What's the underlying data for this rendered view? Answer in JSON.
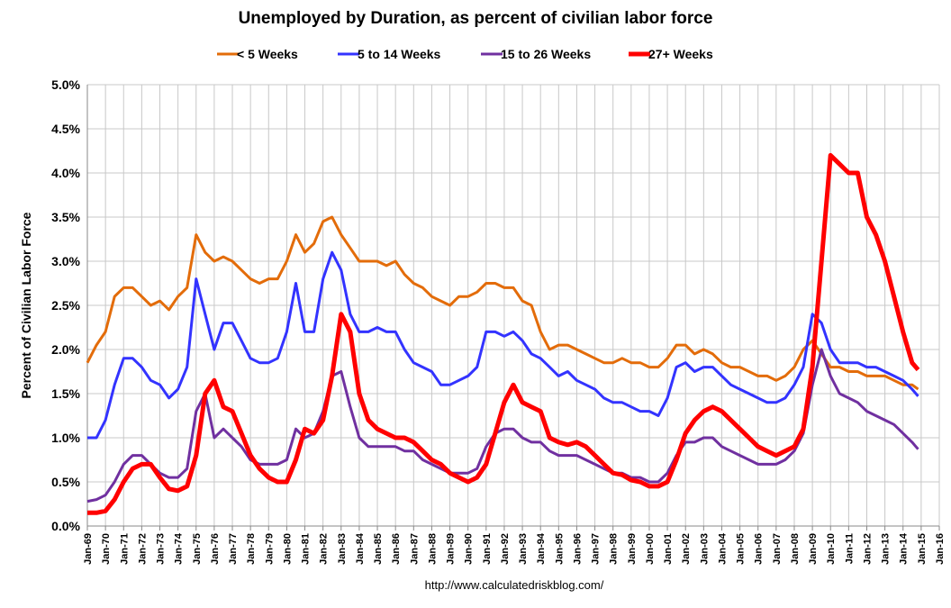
{
  "chart_data": {
    "type": "line",
    "title": "Unemployed by Duration, as percent of civilian labor force",
    "ylabel": "Percent of Civilian Labor Force",
    "source": "http://www.calculatedriskblog.com/",
    "grid": true,
    "legend": "top",
    "x": [
      1969,
      1969.5,
      1970,
      1970.5,
      1971,
      1971.5,
      1972,
      1972.5,
      1973,
      1973.5,
      1974,
      1974.5,
      1975,
      1975.5,
      1976,
      1976.5,
      1977,
      1977.5,
      1978,
      1978.5,
      1979,
      1979.5,
      1980,
      1980.5,
      1981,
      1981.5,
      1982,
      1982.5,
      1983,
      1983.5,
      1984,
      1984.5,
      1985,
      1985.5,
      1986,
      1986.5,
      1987,
      1987.5,
      1988,
      1988.5,
      1989,
      1989.5,
      1990,
      1990.5,
      1991,
      1991.5,
      1992,
      1992.5,
      1993,
      1993.5,
      1994,
      1994.5,
      1995,
      1995.5,
      1996,
      1996.5,
      1997,
      1997.5,
      1998,
      1998.5,
      1999,
      1999.5,
      2000,
      2000.5,
      2001,
      2001.5,
      2002,
      2002.5,
      2003,
      2003.5,
      2004,
      2004.5,
      2005,
      2005.5,
      2006,
      2006.5,
      2007,
      2007.5,
      2008,
      2008.5,
      2009,
      2009.5,
      2010,
      2010.5,
      2011,
      2011.5,
      2012,
      2012.5,
      2013,
      2013.5,
      2014,
      2014.5,
      2014.83
    ],
    "xlim": [
      1969,
      2016
    ],
    "xticks": [
      {
        "value": 1969,
        "label": "Jan-69"
      },
      {
        "value": 1970,
        "label": "Jan-70"
      },
      {
        "value": 1971,
        "label": "Jan-71"
      },
      {
        "value": 1972,
        "label": "Jan-72"
      },
      {
        "value": 1973,
        "label": "Jan-73"
      },
      {
        "value": 1974,
        "label": "Jan-74"
      },
      {
        "value": 1975,
        "label": "Jan-75"
      },
      {
        "value": 1976,
        "label": "Jan-76"
      },
      {
        "value": 1977,
        "label": "Jan-77"
      },
      {
        "value": 1978,
        "label": "Jan-78"
      },
      {
        "value": 1979,
        "label": "Jan-79"
      },
      {
        "value": 1980,
        "label": "Jan-80"
      },
      {
        "value": 1981,
        "label": "Jan-81"
      },
      {
        "value": 1982,
        "label": "Jan-82"
      },
      {
        "value": 1983,
        "label": "Jan-83"
      },
      {
        "value": 1984,
        "label": "Jan-84"
      },
      {
        "value": 1985,
        "label": "Jan-85"
      },
      {
        "value": 1986,
        "label": "Jan-86"
      },
      {
        "value": 1987,
        "label": "Jan-87"
      },
      {
        "value": 1988,
        "label": "Jan-88"
      },
      {
        "value": 1989,
        "label": "Jan-89"
      },
      {
        "value": 1990,
        "label": "Jan-90"
      },
      {
        "value": 1991,
        "label": "Jan-91"
      },
      {
        "value": 1992,
        "label": "Jan-92"
      },
      {
        "value": 1993,
        "label": "Jan-93"
      },
      {
        "value": 1994,
        "label": "Jan-94"
      },
      {
        "value": 1995,
        "label": "Jan-95"
      },
      {
        "value": 1996,
        "label": "Jan-96"
      },
      {
        "value": 1997,
        "label": "Jan-97"
      },
      {
        "value": 1998,
        "label": "Jan-98"
      },
      {
        "value": 1999,
        "label": "Jan-99"
      },
      {
        "value": 2000,
        "label": "Jan-00"
      },
      {
        "value": 2001,
        "label": "Jan-01"
      },
      {
        "value": 2002,
        "label": "Jan-02"
      },
      {
        "value": 2003,
        "label": "Jan-03"
      },
      {
        "value": 2004,
        "label": "Jan-04"
      },
      {
        "value": 2005,
        "label": "Jan-05"
      },
      {
        "value": 2006,
        "label": "Jan-06"
      },
      {
        "value": 2007,
        "label": "Jan-07"
      },
      {
        "value": 2008,
        "label": "Jan-08"
      },
      {
        "value": 2009,
        "label": "Jan-09"
      },
      {
        "value": 2010,
        "label": "Jan-10"
      },
      {
        "value": 2011,
        "label": "Jan-11"
      },
      {
        "value": 2012,
        "label": "Jan-12"
      },
      {
        "value": 2013,
        "label": "Jan-13"
      },
      {
        "value": 2014,
        "label": "Jan-14"
      },
      {
        "value": 2015,
        "label": "Jan-15"
      },
      {
        "value": 2016,
        "label": "Jan-16"
      }
    ],
    "ylim": [
      0,
      5
    ],
    "yticks": [
      {
        "value": 0,
        "label": "0.0%"
      },
      {
        "value": 0.5,
        "label": "0.5%"
      },
      {
        "value": 1,
        "label": "1.0%"
      },
      {
        "value": 1.5,
        "label": "1.5%"
      },
      {
        "value": 2,
        "label": "2.0%"
      },
      {
        "value": 2.5,
        "label": "2.5%"
      },
      {
        "value": 3,
        "label": "3.0%"
      },
      {
        "value": 3.5,
        "label": "3.5%"
      },
      {
        "value": 4,
        "label": "4.0%"
      },
      {
        "value": 4.5,
        "label": "4.5%"
      },
      {
        "value": 5,
        "label": "5.0%"
      }
    ],
    "series": [
      {
        "name": "< 5 Weeks",
        "color": "#e36c0a",
        "width": 3,
        "values": [
          1.85,
          2.05,
          2.2,
          2.6,
          2.7,
          2.7,
          2.6,
          2.5,
          2.55,
          2.45,
          2.6,
          2.7,
          3.3,
          3.1,
          3.0,
          3.05,
          3.0,
          2.9,
          2.8,
          2.75,
          2.8,
          2.8,
          3.0,
          3.3,
          3.1,
          3.2,
          3.45,
          3.5,
          3.3,
          3.15,
          3.0,
          3.0,
          3.0,
          2.95,
          3.0,
          2.85,
          2.75,
          2.7,
          2.6,
          2.55,
          2.5,
          2.6,
          2.6,
          2.65,
          2.75,
          2.75,
          2.7,
          2.7,
          2.55,
          2.5,
          2.2,
          2.0,
          2.05,
          2.05,
          2.0,
          1.95,
          1.9,
          1.85,
          1.85,
          1.9,
          1.85,
          1.85,
          1.8,
          1.8,
          1.9,
          2.05,
          2.05,
          1.95,
          2.0,
          1.95,
          1.85,
          1.8,
          1.8,
          1.75,
          1.7,
          1.7,
          1.65,
          1.7,
          1.8,
          2.0,
          2.1,
          1.95,
          1.8,
          1.8,
          1.75,
          1.75,
          1.7,
          1.7,
          1.7,
          1.65,
          1.6,
          1.6,
          1.55
        ]
      },
      {
        "name": "5 to 14 Weeks",
        "color": "#3333ff",
        "width": 3,
        "values": [
          1.0,
          1.0,
          1.2,
          1.6,
          1.9,
          1.9,
          1.8,
          1.65,
          1.6,
          1.45,
          1.55,
          1.8,
          2.8,
          2.4,
          2.0,
          2.3,
          2.3,
          2.1,
          1.9,
          1.85,
          1.85,
          1.9,
          2.2,
          2.75,
          2.2,
          2.2,
          2.8,
          3.1,
          2.9,
          2.4,
          2.2,
          2.2,
          2.25,
          2.2,
          2.2,
          2.0,
          1.85,
          1.8,
          1.75,
          1.6,
          1.6,
          1.65,
          1.7,
          1.8,
          2.2,
          2.2,
          2.15,
          2.2,
          2.1,
          1.95,
          1.9,
          1.8,
          1.7,
          1.75,
          1.65,
          1.6,
          1.55,
          1.45,
          1.4,
          1.4,
          1.35,
          1.3,
          1.3,
          1.25,
          1.45,
          1.8,
          1.85,
          1.75,
          1.8,
          1.8,
          1.7,
          1.6,
          1.55,
          1.5,
          1.45,
          1.4,
          1.4,
          1.45,
          1.6,
          1.8,
          2.4,
          2.3,
          2.0,
          1.85,
          1.85,
          1.85,
          1.8,
          1.8,
          1.75,
          1.7,
          1.65,
          1.55,
          1.47
        ]
      },
      {
        "name": "15 to 26 Weeks",
        "color": "#7030a0",
        "width": 3,
        "values": [
          0.28,
          0.3,
          0.35,
          0.5,
          0.7,
          0.8,
          0.8,
          0.7,
          0.6,
          0.55,
          0.55,
          0.65,
          1.3,
          1.5,
          1.0,
          1.1,
          1.0,
          0.9,
          0.75,
          0.7,
          0.7,
          0.7,
          0.75,
          1.1,
          1.0,
          1.05,
          1.3,
          1.7,
          1.75,
          1.35,
          1.0,
          0.9,
          0.9,
          0.9,
          0.9,
          0.85,
          0.85,
          0.75,
          0.7,
          0.65,
          0.6,
          0.6,
          0.6,
          0.65,
          0.9,
          1.05,
          1.1,
          1.1,
          1.0,
          0.95,
          0.95,
          0.85,
          0.8,
          0.8,
          0.8,
          0.75,
          0.7,
          0.65,
          0.6,
          0.6,
          0.55,
          0.55,
          0.5,
          0.5,
          0.6,
          0.8,
          0.95,
          0.95,
          1.0,
          1.0,
          0.9,
          0.85,
          0.8,
          0.75,
          0.7,
          0.7,
          0.7,
          0.75,
          0.85,
          1.05,
          1.6,
          2.0,
          1.7,
          1.5,
          1.45,
          1.4,
          1.3,
          1.25,
          1.2,
          1.15,
          1.05,
          0.95,
          0.87
        ]
      },
      {
        "name": "27+ Weeks",
        "color": "#ff0000",
        "width": 5,
        "values": [
          0.15,
          0.15,
          0.17,
          0.3,
          0.5,
          0.65,
          0.7,
          0.7,
          0.55,
          0.42,
          0.4,
          0.45,
          0.8,
          1.5,
          1.65,
          1.35,
          1.3,
          1.05,
          0.8,
          0.65,
          0.55,
          0.5,
          0.5,
          0.75,
          1.1,
          1.05,
          1.2,
          1.7,
          2.4,
          2.2,
          1.5,
          1.2,
          1.1,
          1.05,
          1.0,
          1.0,
          0.95,
          0.85,
          0.75,
          0.7,
          0.6,
          0.55,
          0.5,
          0.55,
          0.7,
          1.05,
          1.4,
          1.6,
          1.4,
          1.35,
          1.3,
          1.0,
          0.95,
          0.92,
          0.95,
          0.9,
          0.8,
          0.7,
          0.6,
          0.58,
          0.52,
          0.5,
          0.45,
          0.45,
          0.5,
          0.75,
          1.05,
          1.2,
          1.3,
          1.35,
          1.3,
          1.2,
          1.1,
          1.0,
          0.9,
          0.85,
          0.8,
          0.85,
          0.9,
          1.1,
          1.8,
          3.0,
          4.2,
          4.1,
          4.0,
          4.0,
          3.5,
          3.3,
          3.0,
          2.6,
          2.2,
          1.85,
          1.77
        ]
      }
    ]
  }
}
